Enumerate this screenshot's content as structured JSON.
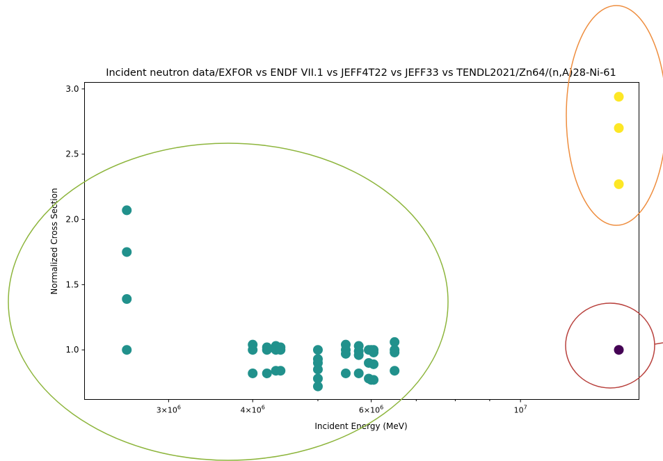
{
  "chart_data": {
    "type": "scatter",
    "title": "Incident neutron data/EXFOR vs ENDF VII.1 vs JEFF4T22 vs JEFF33 vs TENDL2021/Zn64/(n,A)28-Ni-61",
    "xlabel": "Incident Energy (MeV)",
    "ylabel": "Normalized Cross Section",
    "xscale": "log",
    "xlim": [
      2250000,
      15000000
    ],
    "ylim": [
      0.62,
      3.05
    ],
    "grid": false,
    "x_ticks": [
      {
        "value": 3000000,
        "base": "3×10",
        "exp": "6"
      },
      {
        "value": 4000000,
        "base": "4×10",
        "exp": "6"
      },
      {
        "value": 6000000,
        "base": "6×10",
        "exp": "6"
      },
      {
        "value": 10000000,
        "base": "10",
        "exp": "7"
      }
    ],
    "x_minor_ticks": [
      5000000,
      7000000,
      8000000,
      9000000
    ],
    "y_ticks": [
      {
        "value": 1.0,
        "label": "1.0"
      },
      {
        "value": 1.5,
        "label": "1.5"
      },
      {
        "value": 2.0,
        "label": "2.0"
      },
      {
        "value": 2.5,
        "label": "2.5"
      },
      {
        "value": 3.0,
        "label": "3.0"
      }
    ],
    "series": [
      {
        "color": "#21918c",
        "points": [
          [
            2600000,
            2.07
          ],
          [
            2600000,
            1.75
          ],
          [
            2600000,
            1.39
          ],
          [
            2600000,
            1.0
          ],
          [
            4000000,
            1.04
          ],
          [
            4000000,
            1.0
          ],
          [
            4000000,
            0.82
          ],
          [
            4200000,
            1.02
          ],
          [
            4200000,
            1.0
          ],
          [
            4200000,
            0.82
          ],
          [
            4330000,
            1.03
          ],
          [
            4330000,
            1.0
          ],
          [
            4330000,
            0.84
          ],
          [
            4400000,
            1.02
          ],
          [
            4400000,
            1.0
          ],
          [
            4400000,
            0.84
          ],
          [
            5000000,
            1.0
          ],
          [
            5000000,
            0.93
          ],
          [
            5000000,
            0.9
          ],
          [
            5000000,
            0.85
          ],
          [
            5000000,
            0.78
          ],
          [
            5000000,
            0.72
          ],
          [
            5500000,
            1.04
          ],
          [
            5500000,
            1.0
          ],
          [
            5500000,
            0.97
          ],
          [
            5500000,
            0.82
          ],
          [
            5750000,
            1.03
          ],
          [
            5750000,
            0.99
          ],
          [
            5750000,
            0.96
          ],
          [
            5750000,
            0.82
          ],
          [
            5950000,
            1.0
          ],
          [
            5950000,
            0.9
          ],
          [
            5950000,
            0.78
          ],
          [
            6000000,
            1.0
          ],
          [
            6000000,
            0.77
          ],
          [
            6050000,
            1.0
          ],
          [
            6050000,
            0.98
          ],
          [
            6050000,
            0.89
          ],
          [
            6050000,
            0.77
          ],
          [
            6500000,
            1.06
          ],
          [
            6500000,
            1.0
          ],
          [
            6500000,
            0.98
          ],
          [
            6500000,
            0.84
          ]
        ]
      },
      {
        "color": "#fde725",
        "points": [
          [
            14000000,
            2.94
          ],
          [
            14000000,
            2.7
          ],
          [
            14000000,
            2.27
          ]
        ]
      },
      {
        "color": "#440154",
        "points": [
          [
            14000000,
            1.0
          ]
        ]
      }
    ],
    "annotations": [
      {
        "kind": "ellipse",
        "color": "#8db53c"
      },
      {
        "kind": "ellipse",
        "color": "#ee8d3e"
      },
      {
        "kind": "ellipse",
        "color": "#b8403c"
      }
    ]
  }
}
